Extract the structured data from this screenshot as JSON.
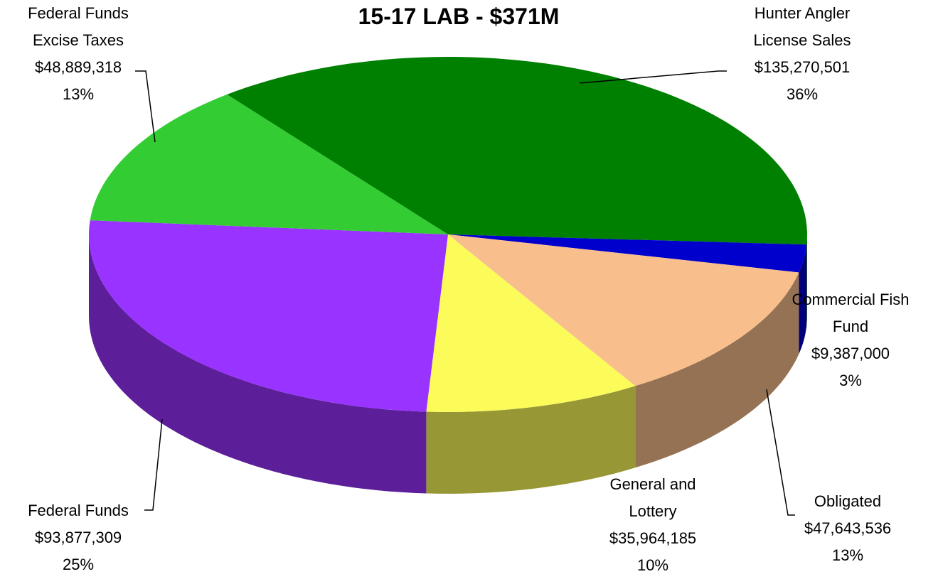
{
  "chart_data": {
    "type": "pie",
    "title": "15-17 LAB - $371M",
    "categories": [
      "Hunter Angler License Sales",
      "Commercial Fish Fund",
      "Obligated",
      "General and Lottery",
      "Federal Funds",
      "Federal Funds Excise Taxes"
    ],
    "values": [
      135270501,
      9387000,
      47643536,
      35964185,
      93877309,
      48889318
    ],
    "value_labels": [
      "$135,270,501",
      "$9,387,000",
      "$47,643,536",
      "$35,964,185",
      "$93,877,309",
      "$48,889,318"
    ],
    "percent_labels": [
      "36%",
      "3%",
      "13%",
      "10%",
      "25%",
      "13%"
    ],
    "colors": [
      "#008000",
      "#0000cc",
      "#f8be8c",
      "#fbfb5a",
      "#9933ff",
      "#33cc33"
    ]
  }
}
